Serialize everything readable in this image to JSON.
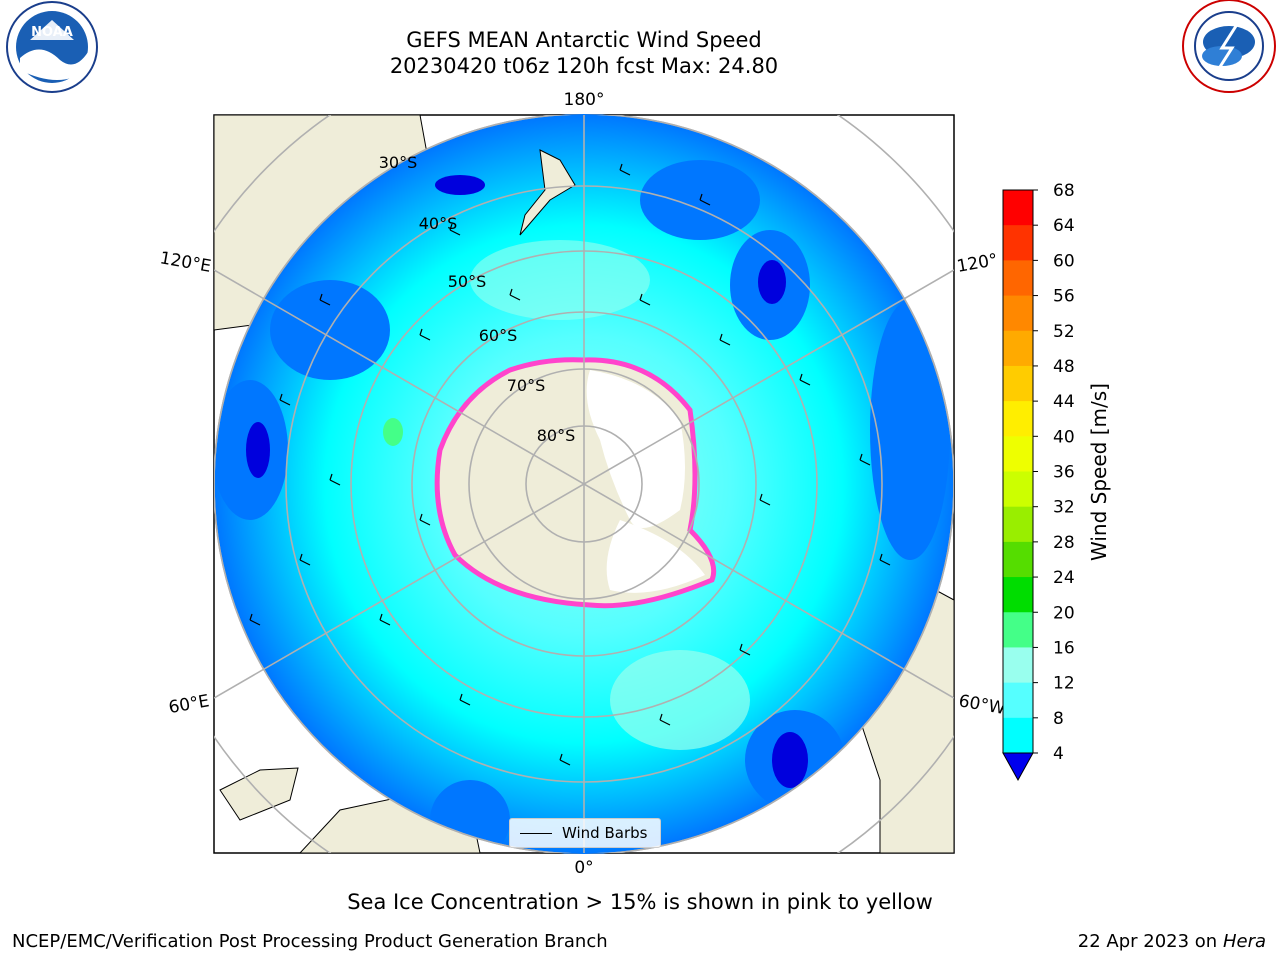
{
  "title_line1": "GEFS MEAN Antarctic Wind Speed",
  "title_line2": "20230420 t06z 120h fcst   Max: 24.80",
  "subtitle": "Sea Ice Concentration > 15% is shown in pink to yellow",
  "footer_left": "NCEP/EMC/Verification Post Processing Product Generation Branch",
  "footer_date": "22 Apr 2023 on ",
  "footer_machine": "Hera",
  "legend_label": "Wind Barbs",
  "logos": {
    "left": "NOAA",
    "right": "NATIONAL WEATHER SERVICE"
  },
  "longitude_labels": [
    "180°",
    "120°E",
    "120°",
    "60°E",
    "60°W",
    "0°"
  ],
  "latitude_labels": [
    "30°S",
    "40°S",
    "50°S",
    "60°S",
    "70°S",
    "80°S"
  ],
  "colorbar": {
    "label": "Wind Speed [m/s]",
    "ticks": [
      "68",
      "64",
      "60",
      "56",
      "52",
      "48",
      "44",
      "40",
      "36",
      "32",
      "28",
      "24",
      "20",
      "16",
      "12",
      "8",
      "4"
    ],
    "colors": [
      "#ff0000",
      "#ff3300",
      "#ff6600",
      "#ff8800",
      "#ffaa00",
      "#ffcc00",
      "#ffee00",
      "#eeff00",
      "#ccff00",
      "#99ee00",
      "#55dd00",
      "#00dd00",
      "#44ff88",
      "#99ffee",
      "#55ffff",
      "#00ffff",
      "#0077ff"
    ],
    "extend_color": "#0000ee"
  },
  "map_colors": {
    "land": "#efedd9",
    "ocean_low": "#0077ff",
    "ocean_mid": "#00ffff",
    "ocean_high": "#55ffff",
    "ice_edge": "#ff44cc",
    "deep_low": "#0000dd"
  }
}
